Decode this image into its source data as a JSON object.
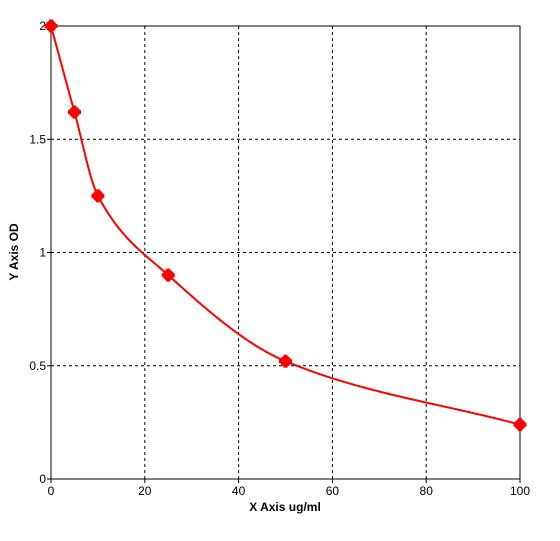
{
  "chart_data": {
    "type": "scatter",
    "xlabel": "X Axis ug/ml",
    "ylabel": "Y Axis OD",
    "xlim": [
      0,
      100
    ],
    "ylim": [
      0,
      2
    ],
    "xticks": [
      0,
      20,
      40,
      60,
      80,
      100
    ],
    "yticks": [
      0,
      0.5,
      1,
      1.5,
      2
    ],
    "xtick_labels": [
      "0",
      "20",
      "40",
      "60",
      "80",
      "100"
    ],
    "ytick_labels": [
      "0",
      "0.5",
      "1",
      "1.5",
      "2"
    ],
    "grid": true,
    "series": [
      {
        "points": [
          {
            "x": 0,
            "y": 2.0
          },
          {
            "x": 5,
            "y": 1.62
          },
          {
            "x": 10,
            "y": 1.25
          },
          {
            "x": 25,
            "y": 0.9
          },
          {
            "x": 50,
            "y": 0.52
          },
          {
            "x": 100,
            "y": 0.24
          }
        ],
        "color": "#ff0000",
        "fit_curve": true
      }
    ]
  }
}
